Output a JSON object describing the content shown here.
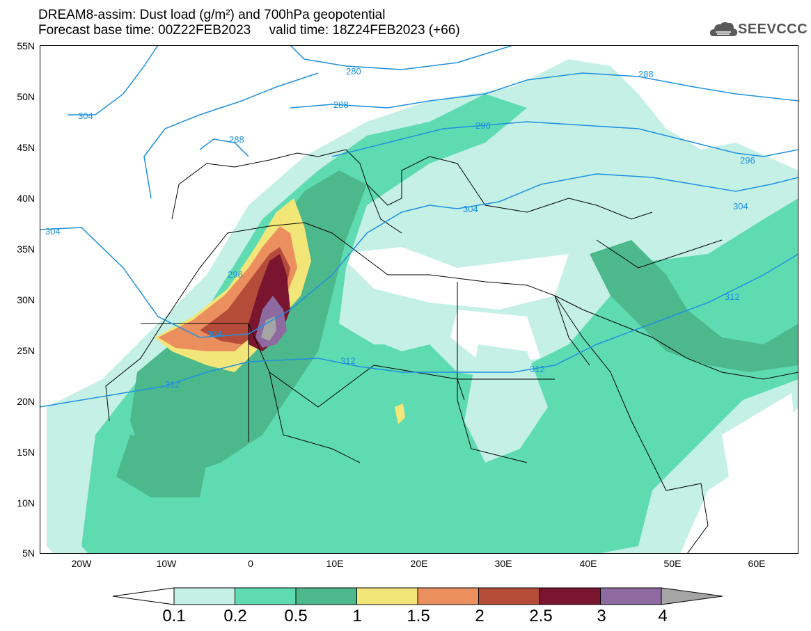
{
  "title_line1": "DREAM8-assim: Dust load (g/m²) and 700hPa geopotential",
  "title_line2": "Forecast base time: 00Z22FEB2023     valid time: 18Z24FEB2023 (+66)",
  "logo_text": "SEEVCCC",
  "lat_labels": [
    "55N",
    "50N",
    "45N",
    "40N",
    "35N",
    "30N",
    "25N",
    "20N",
    "15N",
    "10N",
    "5N"
  ],
  "lon_labels": [
    "20W",
    "10W",
    "0",
    "10E",
    "20E",
    "30E",
    "40E",
    "50E",
    "60E"
  ],
  "colorbar": {
    "labels": [
      "0.1",
      "0.2",
      "0.5",
      "1",
      "1.5",
      "2",
      "2.5",
      "3",
      "4"
    ],
    "colors": [
      "#c4f0e6",
      "#5fdbb2",
      "#4db88c",
      "#f2e679",
      "#eb8f5f",
      "#b54c3a",
      "#7a1530",
      "#8d6aa0",
      "#a5a5a5"
    ]
  },
  "contour_labels": [
    "280",
    "288",
    "288",
    "288",
    "296",
    "296",
    "296",
    "304",
    "304",
    "304",
    "304",
    "304",
    "312",
    "312",
    "312",
    "312"
  ]
}
